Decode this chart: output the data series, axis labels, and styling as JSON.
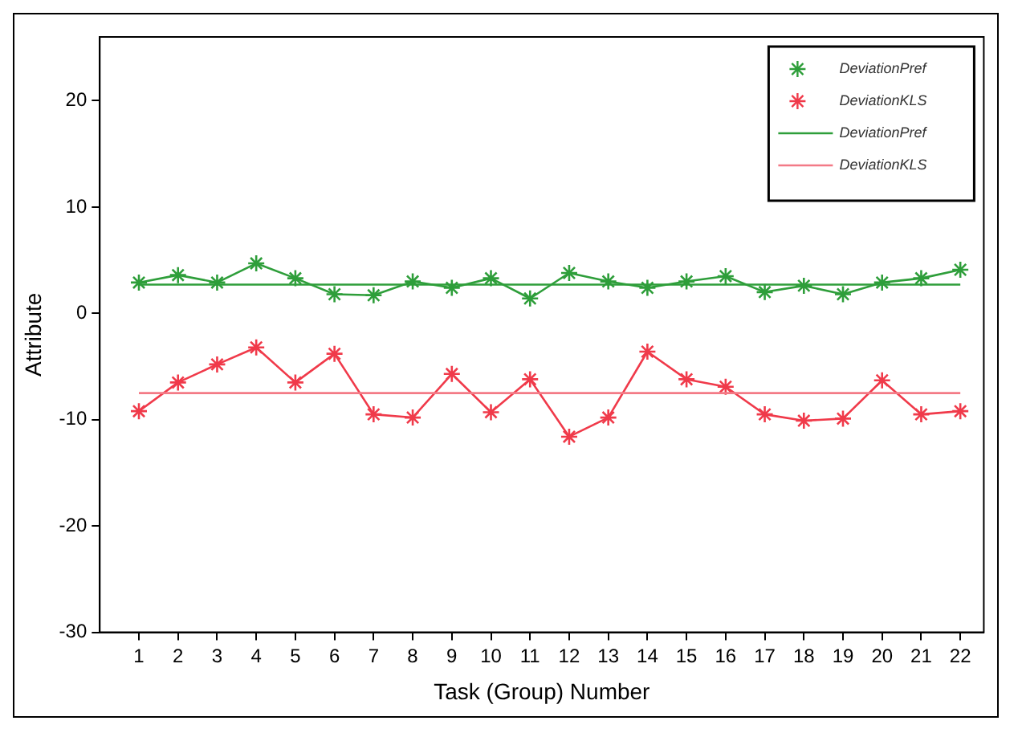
{
  "chart_data": {
    "type": "line",
    "xlabel": "Task (Group) Number",
    "ylabel": "Attribute",
    "x": [
      1,
      2,
      3,
      4,
      5,
      6,
      7,
      8,
      9,
      10,
      11,
      12,
      13,
      14,
      15,
      16,
      17,
      18,
      19,
      20,
      21,
      22
    ],
    "xlim": [
      0,
      22.6
    ],
    "xticks": [
      1,
      2,
      3,
      4,
      5,
      6,
      7,
      8,
      9,
      10,
      11,
      12,
      13,
      14,
      15,
      16,
      17,
      18,
      19,
      20,
      21,
      22
    ],
    "ylim": [
      -30,
      26
    ],
    "yticks": [
      -30,
      -20,
      -10,
      0,
      10,
      20
    ],
    "grid": false,
    "legend": "top right",
    "line_style": "solid",
    "series": [
      {
        "name": "DeviationPref",
        "color": "#2e9e3a",
        "marker": "cross",
        "values": [
          2.9,
          3.6,
          2.9,
          4.7,
          3.3,
          1.8,
          1.7,
          3.0,
          2.4,
          3.3,
          1.4,
          3.8,
          3.0,
          2.4,
          3.0,
          3.5,
          2.0,
          2.6,
          1.8,
          2.9,
          3.3,
          4.1
        ]
      },
      {
        "name": "DeviationKLS",
        "color": "#f03a4a",
        "marker": "cross",
        "values": [
          -9.2,
          -6.5,
          -4.8,
          -3.2,
          -6.5,
          -3.8,
          -9.5,
          -9.8,
          -5.7,
          -9.3,
          -6.2,
          -11.6,
          -9.8,
          -3.6,
          -6.2,
          -6.9,
          -9.5,
          -10.1,
          -9.9,
          -6.3,
          -9.5,
          -9.2
        ]
      }
    ],
    "ref_lines": [
      {
        "axis": "y",
        "value": 2.7,
        "label": "DeviationPref",
        "color": "#2e9e3a"
      },
      {
        "axis": "y",
        "value": -7.5,
        "label": "DeviationKLS",
        "color": "#f37a86"
      }
    ]
  }
}
